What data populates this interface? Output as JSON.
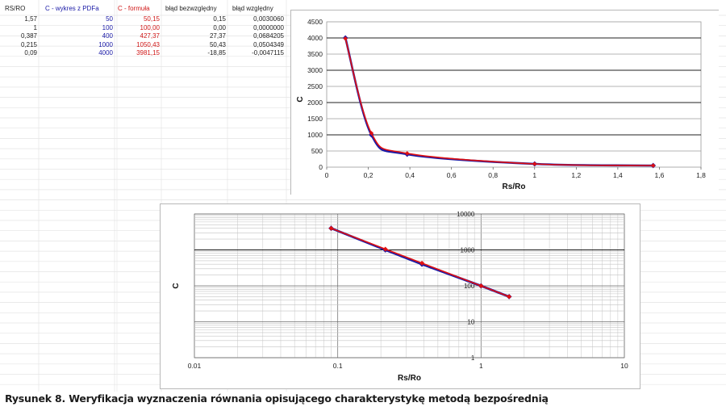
{
  "spreadsheet": {
    "headers": [
      "RS/RO",
      "C - wykres z PDFa",
      "C - formuła",
      "błąd bezwzględny",
      "błąd względny"
    ],
    "rows": [
      [
        "1,57",
        "50",
        "50,15",
        "0,15",
        "0,0030060"
      ],
      [
        "1",
        "100",
        "100,00",
        "0,00",
        "0,0000000"
      ],
      [
        "0,387",
        "400",
        "427,37",
        "27,37",
        "0,0684205"
      ],
      [
        "0,215",
        "1000",
        "1050,43",
        "50,43",
        "0,0504349"
      ],
      [
        "0,09",
        "4000",
        "3981,15",
        "-18,85",
        "-0,0047115"
      ]
    ]
  },
  "chart_data": [
    {
      "type": "line",
      "xlabel": "Rs/Ro",
      "ylabel": "C",
      "xlim": [
        0,
        1.8
      ],
      "ylim": [
        0,
        4500
      ],
      "x_ticks": [
        "0",
        "0,2",
        "0,4",
        "0,6",
        "0,8",
        "1",
        "1,2",
        "1,4",
        "1,6",
        "1,8"
      ],
      "y_ticks": [
        "0",
        "500",
        "1000",
        "1500",
        "2000",
        "2500",
        "3000",
        "3500",
        "4000",
        "4500"
      ],
      "series": [
        {
          "color": "#1a1aa6",
          "marker": "diamond",
          "x": [
            0.09,
            0.215,
            0.387,
            1,
            1.57
          ],
          "y": [
            4000,
            1000,
            400,
            100,
            50
          ]
        },
        {
          "color": "#e01010",
          "marker": "diamond",
          "x": [
            0.09,
            0.215,
            0.387,
            1,
            1.57
          ],
          "y": [
            3981.15,
            1050.43,
            427.37,
            100,
            50.15
          ]
        }
      ],
      "grid": "horizontal"
    },
    {
      "type": "line",
      "xlabel": "Rs/Ro",
      "ylabel": "C",
      "xscale": "log",
      "yscale": "log",
      "xlim": [
        0.01,
        10
      ],
      "ylim": [
        1,
        10000
      ],
      "x_ticks": [
        "0.01",
        "0.1",
        "1",
        "10"
      ],
      "y_ticks": [
        "1",
        "10",
        "100",
        "1000",
        "10000"
      ],
      "series": [
        {
          "color": "#1a1aa6",
          "marker": "diamond",
          "x": [
            0.09,
            0.215,
            0.387,
            1,
            1.57
          ],
          "y": [
            4000,
            1000,
            400,
            100,
            50
          ]
        },
        {
          "color": "#e01010",
          "marker": "diamond",
          "x": [
            0.09,
            0.215,
            0.387,
            1,
            1.57
          ],
          "y": [
            3981.15,
            1050.43,
            427.37,
            100,
            50.15
          ]
        }
      ],
      "grid": "both"
    }
  ],
  "caption": "Rysunek 8. Weryfikacja wyznaczenia równania opisującego charakterystykę metodą bezpośrednią",
  "colors": {
    "blue": "#1a1aa6",
    "red": "#e01010",
    "grid": "#c8c8c8"
  }
}
